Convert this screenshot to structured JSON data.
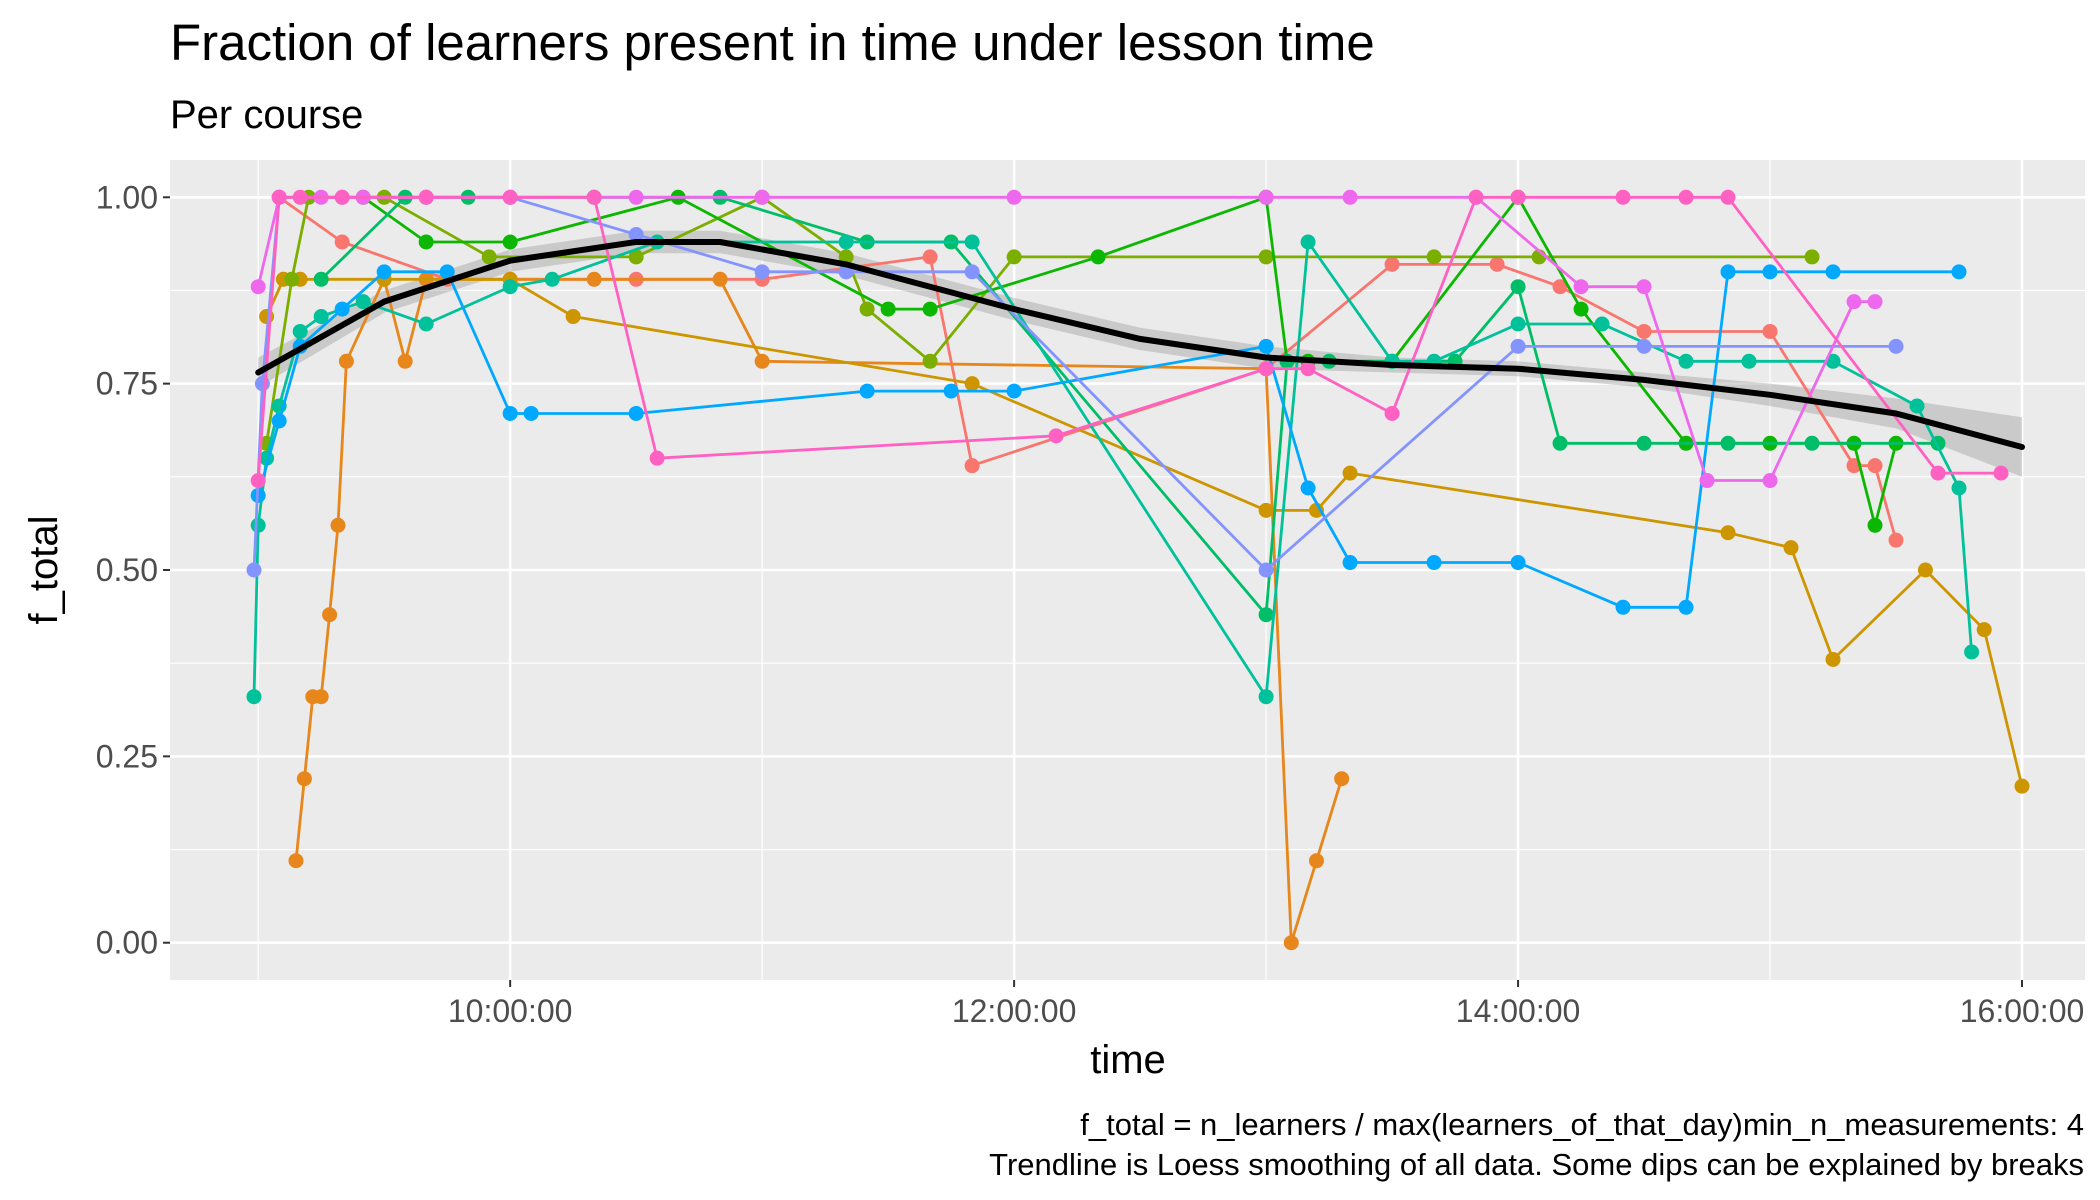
{
  "chart_data": {
    "type": "line",
    "title": "Fraction of learners present in time under lesson time",
    "subtitle": "Per course",
    "xlabel": "time",
    "ylabel": "f_total",
    "caption": [
      "f_total = n_learners / max(learners_of_that_day)min_n_measurements: 4",
      "Trendline is Loess smoothing of all data. Some dips can be explained by breaks"
    ],
    "xlim": [
      "08:39:00",
      "16:15:00"
    ],
    "ylim": [
      -0.05,
      1.05
    ],
    "x_ticks": [
      "10:00:00",
      "12:00:00",
      "14:00:00",
      "16:00:00"
    ],
    "y_ticks": [
      "0.00",
      "0.25",
      "0.50",
      "0.75",
      "1.00"
    ],
    "grid": true,
    "legend": "none",
    "series": [
      {
        "color": "#F8766D",
        "x": [
          "09:05:00",
          "09:20:00",
          "09:45:00",
          "10:30:00",
          "11:00:00",
          "11:40:00",
          "11:50:00",
          "13:00:00",
          "13:30:00",
          "13:55:00",
          "14:10:00",
          "14:30:00",
          "15:00:00",
          "15:20:00",
          "15:25:00",
          "15:30:00"
        ],
        "y": [
          1.0,
          0.94,
          0.89,
          0.89,
          0.89,
          0.92,
          0.64,
          0.77,
          0.91,
          0.91,
          0.88,
          0.82,
          0.82,
          0.64,
          0.64,
          0.54
        ]
      },
      {
        "color": "#E7861B",
        "x": [
          "09:09:00",
          "09:11:00",
          "09:13:00",
          "09:15:00",
          "09:17:00",
          "09:19:00",
          "09:21:00",
          "09:30:00",
          "09:35:00",
          "09:40:00",
          "10:00:00",
          "10:20:00",
          "10:50:00",
          "11:00:00",
          "13:00:00",
          "13:06:00",
          "13:12:00",
          "13:18:00"
        ],
        "y": [
          0.11,
          0.22,
          0.33,
          0.33,
          0.44,
          0.56,
          0.78,
          0.89,
          0.78,
          0.89,
          0.89,
          0.89,
          0.89,
          0.78,
          0.77,
          0.0,
          0.11,
          0.22
        ]
      },
      {
        "color": "#CD9600",
        "x": [
          "09:02:00",
          "09:06:00",
          "09:10:00",
          "09:30:00",
          "10:00:00",
          "10:15:00",
          "11:50:00",
          "13:00:00",
          "13:12:00",
          "13:20:00",
          "14:50:00",
          "15:05:00",
          "15:15:00",
          "15:37:00",
          "15:51:00",
          "16:00:00"
        ],
        "y": [
          0.84,
          0.89,
          0.89,
          0.89,
          0.89,
          0.84,
          0.75,
          0.58,
          0.58,
          0.63,
          0.55,
          0.53,
          0.38,
          0.5,
          0.42,
          0.21
        ]
      },
      {
        "color": "#7CAE00",
        "x": [
          "09:02:00",
          "09:08:00",
          "09:12:00",
          "09:30:00",
          "09:55:00",
          "10:30:00",
          "11:00:00",
          "11:20:00",
          "11:25:00",
          "11:40:00",
          "12:00:00",
          "13:00:00",
          "13:40:00",
          "14:05:00",
          "15:10:00"
        ],
        "y": [
          0.67,
          0.89,
          1.0,
          1.0,
          0.92,
          0.92,
          1.0,
          0.92,
          0.85,
          0.78,
          0.92,
          0.92,
          0.92,
          0.92,
          0.92
        ]
      },
      {
        "color": "#0CB702",
        "x": [
          "09:25:00",
          "09:40:00",
          "10:00:00",
          "10:40:00",
          "11:30:00",
          "11:40:00",
          "12:20:00",
          "13:00:00",
          "13:05:00",
          "13:10:00",
          "13:30:00",
          "14:00:00",
          "14:15:00",
          "14:40:00",
          "15:00:00",
          "15:20:00",
          "15:25:00",
          "15:30:00"
        ],
        "y": [
          1.0,
          0.94,
          0.94,
          1.0,
          0.85,
          0.85,
          0.92,
          1.0,
          0.78,
          0.78,
          0.78,
          1.0,
          0.85,
          0.67,
          0.67,
          0.67,
          0.56,
          0.67
        ]
      },
      {
        "color": "#00BE67",
        "x": [
          "09:15:00",
          "09:35:00",
          "09:50:00",
          "10:20:00",
          "10:50:00",
          "11:25:00",
          "11:45:00",
          "13:00:00",
          "13:05:00",
          "13:15:00",
          "13:45:00",
          "14:00:00",
          "14:10:00",
          "14:30:00",
          "14:50:00",
          "15:10:00",
          "15:40:00"
        ],
        "y": [
          0.89,
          1.0,
          1.0,
          1.0,
          1.0,
          0.94,
          0.94,
          0.44,
          0.78,
          0.78,
          0.78,
          0.88,
          0.67,
          0.67,
          0.67,
          0.67,
          0.67
        ]
      },
      {
        "color": "#00C19A",
        "x": [
          "08:59:00",
          "09:00:00",
          "09:02:00",
          "09:05:00",
          "09:10:00",
          "09:15:00",
          "09:25:00",
          "09:40:00",
          "10:00:00",
          "10:10:00",
          "10:35:00",
          "11:20:00",
          "11:50:00",
          "13:00:00",
          "13:10:00",
          "13:30:00",
          "13:40:00",
          "14:00:00",
          "14:20:00",
          "14:40:00",
          "14:55:00",
          "15:15:00",
          "15:35:00",
          "15:45:00",
          "15:48:00"
        ],
        "y": [
          0.33,
          0.56,
          0.65,
          0.72,
          0.82,
          0.84,
          0.86,
          0.83,
          0.88,
          0.89,
          0.94,
          0.94,
          0.94,
          0.33,
          0.94,
          0.78,
          0.78,
          0.83,
          0.83,
          0.78,
          0.78,
          0.78,
          0.72,
          0.61,
          0.39
        ]
      },
      {
        "color": "#00A9FF",
        "x": [
          "09:00:00",
          "09:05:00",
          "09:10:00",
          "09:20:00",
          "09:30:00",
          "09:45:00",
          "10:00:00",
          "10:05:00",
          "10:30:00",
          "11:25:00",
          "11:45:00",
          "12:00:00",
          "13:00:00",
          "13:10:00",
          "13:20:00",
          "13:40:00",
          "14:00:00",
          "14:25:00",
          "14:40:00",
          "14:50:00",
          "15:00:00",
          "15:15:00",
          "15:45:00"
        ],
        "y": [
          0.6,
          0.7,
          0.8,
          0.85,
          0.9,
          0.9,
          0.71,
          0.71,
          0.71,
          0.74,
          0.74,
          0.74,
          0.8,
          0.61,
          0.51,
          0.51,
          0.51,
          0.45,
          0.45,
          0.9,
          0.9,
          0.9,
          0.9
        ]
      },
      {
        "color": "#8494FF",
        "x": [
          "08:59:00",
          "09:01:00",
          "09:05:00",
          "09:20:00",
          "09:40:00",
          "10:00:00",
          "10:30:00",
          "11:00:00",
          "11:20:00",
          "11:50:00",
          "13:00:00",
          "14:00:00",
          "14:30:00",
          "15:30:00"
        ],
        "y": [
          0.5,
          0.75,
          1.0,
          1.0,
          1.0,
          1.0,
          0.95,
          0.9,
          0.9,
          0.9,
          0.5,
          0.8,
          0.8,
          0.8
        ]
      },
      {
        "color": "#ED68ED",
        "x": [
          "09:00:00",
          "09:05:00",
          "09:15:00",
          "09:25:00",
          "09:40:00",
          "10:00:00",
          "10:30:00",
          "11:00:00",
          "12:00:00",
          "13:00:00",
          "13:20:00",
          "13:50:00",
          "14:15:00",
          "14:30:00",
          "14:45:00",
          "15:00:00",
          "15:20:00",
          "15:25:00"
        ],
        "y": [
          0.88,
          1.0,
          1.0,
          1.0,
          1.0,
          1.0,
          1.0,
          1.0,
          1.0,
          1.0,
          1.0,
          1.0,
          0.88,
          0.88,
          0.62,
          0.62,
          0.86,
          0.86
        ]
      },
      {
        "color": "#FF61C3",
        "x": [
          "09:00:00",
          "09:05:00",
          "09:10:00",
          "09:20:00",
          "09:40:00",
          "10:00:00",
          "10:20:00",
          "10:35:00",
          "12:10:00",
          "13:00:00",
          "13:10:00",
          "13:30:00",
          "13:50:00",
          "14:00:00",
          "14:25:00",
          "14:40:00",
          "14:50:00",
          "15:40:00",
          "15:55:00"
        ],
        "y": [
          0.62,
          1.0,
          1.0,
          1.0,
          1.0,
          1.0,
          1.0,
          0.65,
          0.68,
          0.77,
          0.77,
          0.71,
          1.0,
          1.0,
          1.0,
          1.0,
          1.0,
          0.63,
          0.63
        ]
      }
    ],
    "trend": {
      "name": "Loess smoothing",
      "color": "#000000",
      "x": [
        "09:00:00",
        "09:30:00",
        "10:00:00",
        "10:30:00",
        "10:50:00",
        "11:20:00",
        "12:00:00",
        "12:30:00",
        "13:00:00",
        "13:30:00",
        "14:00:00",
        "14:30:00",
        "15:00:00",
        "15:30:00",
        "16:00:00"
      ],
      "y": [
        0.765,
        0.86,
        0.915,
        0.94,
        0.94,
        0.91,
        0.85,
        0.81,
        0.785,
        0.775,
        0.77,
        0.755,
        0.735,
        0.71,
        0.665
      ],
      "lower": [
        0.745,
        0.845,
        0.9,
        0.925,
        0.925,
        0.895,
        0.835,
        0.795,
        0.77,
        0.765,
        0.76,
        0.745,
        0.72,
        0.69,
        0.625
      ],
      "upper": [
        0.785,
        0.875,
        0.93,
        0.955,
        0.955,
        0.925,
        0.865,
        0.825,
        0.8,
        0.785,
        0.78,
        0.765,
        0.75,
        0.73,
        0.705
      ]
    }
  }
}
